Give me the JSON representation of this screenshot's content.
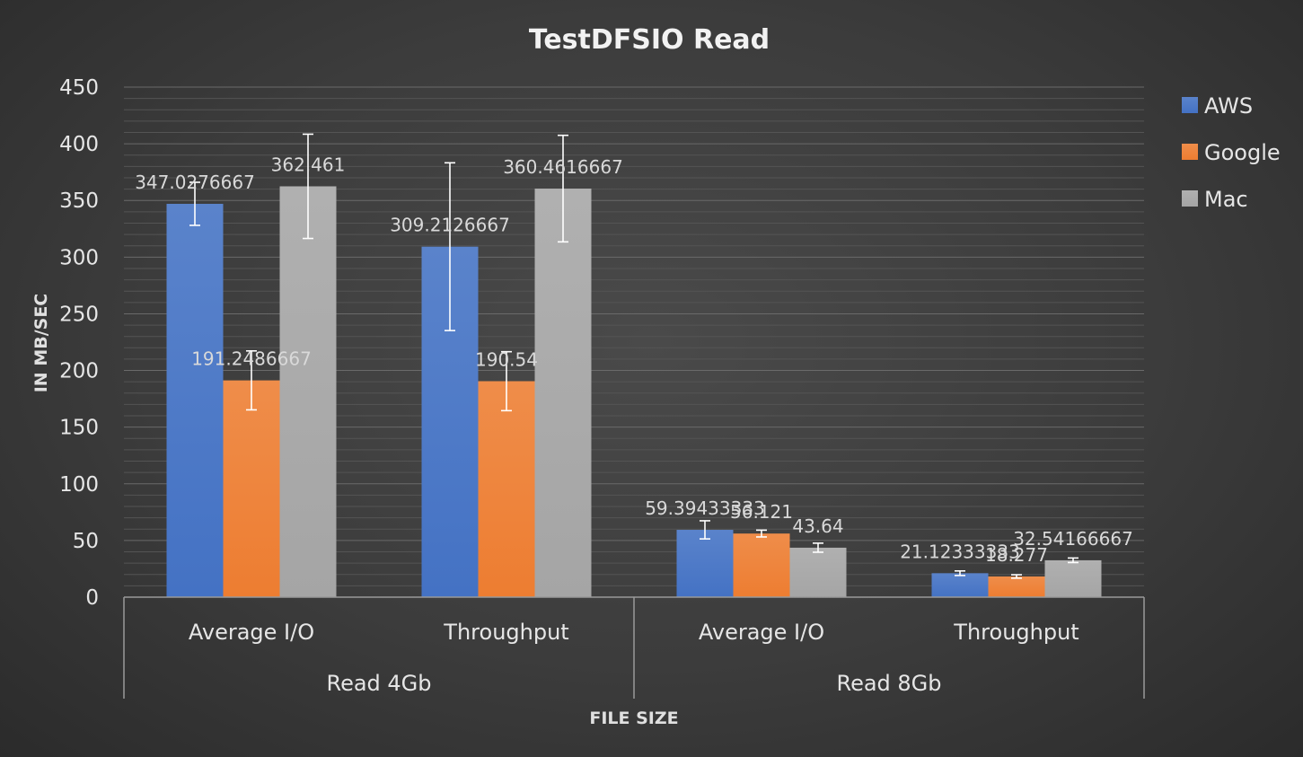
{
  "chart_data": {
    "type": "bar",
    "title": "TestDFSIO Read",
    "xlabel": "FILE SIZE",
    "ylabel": "IN MB/SEC",
    "ylim": [
      0,
      450
    ],
    "yticks": [
      0,
      50,
      100,
      150,
      200,
      250,
      300,
      350,
      400,
      450
    ],
    "grid": true,
    "legend_position": "right",
    "groups": [
      {
        "label": "Read 4Gb",
        "categories": [
          "Average I/O",
          "Throughput"
        ]
      },
      {
        "label": "Read 8Gb",
        "categories": [
          "Average I/O",
          "Throughput"
        ]
      }
    ],
    "series": [
      {
        "name": "AWS",
        "color": "#4472c4",
        "values": [
          347.0276667,
          309.2126667,
          59.39433333,
          21.12333333
        ],
        "labels": [
          "347.0276667",
          "309.2126667",
          "59.39433333",
          "21.12333333"
        ],
        "error": [
          19,
          74,
          8,
          2
        ]
      },
      {
        "name": "Google",
        "color": "#ed7d31",
        "values": [
          191.2486667,
          190.54,
          56.121,
          18.277
        ],
        "labels": [
          "191.2486667",
          "190.54",
          "56.121",
          "18.277"
        ],
        "error": [
          26,
          26,
          3,
          1.5
        ]
      },
      {
        "name": "Mac",
        "color": "#a5a5a5",
        "values": [
          362.461,
          360.4616667,
          43.64,
          32.54166667
        ],
        "labels": [
          "362.461",
          "360.4616667",
          "43.64",
          "32.54166667"
        ],
        "error": [
          46,
          47,
          4,
          2
        ]
      }
    ]
  }
}
